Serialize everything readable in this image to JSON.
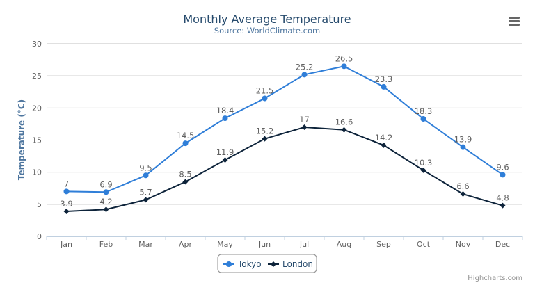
{
  "chart_data": {
    "type": "line",
    "title": "Monthly Average Temperature",
    "subtitle": "Source: WorldClimate.com",
    "ylabel": "Temperature (°C)",
    "xlabel": "",
    "ylim": [
      0,
      30
    ],
    "yticks": [
      0,
      5,
      10,
      15,
      20,
      25,
      30
    ],
    "grid": true,
    "legend_placement": "bottom-center",
    "categories": [
      "Jan",
      "Feb",
      "Mar",
      "Apr",
      "May",
      "Jun",
      "Jul",
      "Aug",
      "Sep",
      "Oct",
      "Nov",
      "Dec"
    ],
    "series": [
      {
        "name": "Tokyo",
        "color": "#2f7ed8",
        "marker": "circle",
        "values": [
          7.0,
          6.9,
          9.5,
          14.5,
          18.4,
          21.5,
          25.2,
          26.5,
          23.3,
          18.3,
          13.9,
          9.6
        ]
      },
      {
        "name": "London",
        "color": "#0d233a",
        "marker": "diamond",
        "values": [
          3.9,
          4.2,
          5.7,
          8.5,
          11.9,
          15.2,
          17.0,
          16.6,
          14.2,
          10.3,
          6.6,
          4.8
        ]
      }
    ],
    "data_labels": true
  },
  "credits": "Highcharts.com",
  "menu_icon": "hamburger-menu-icon",
  "colors": {
    "title": "#274b6d",
    "subtitle": "#4d759e",
    "grid": "#c0c0c0",
    "axis": "#c0d0e0",
    "label": "#606060"
  }
}
